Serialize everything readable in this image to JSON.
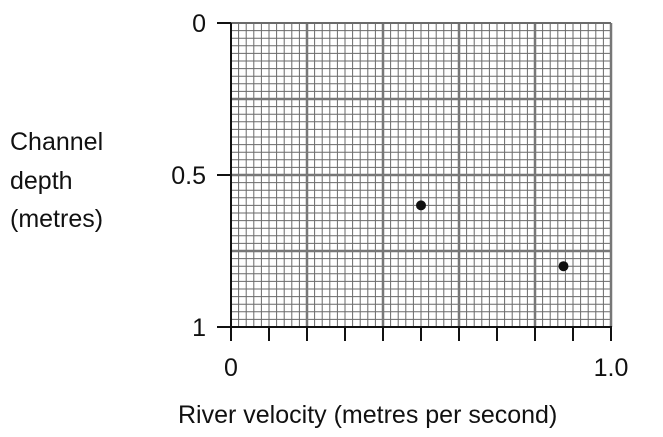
{
  "chart_data": {
    "type": "scatter",
    "title": "",
    "xlabel": "River velocity (metres per second)",
    "ylabel_lines": [
      "Channel",
      "depth",
      "(metres)"
    ],
    "xlim": [
      0,
      1.0
    ],
    "ylim": [
      0,
      1
    ],
    "y_inverted": true,
    "grid": true,
    "x_tick_labels": [
      "0",
      "1.0"
    ],
    "y_tick_labels": [
      "0",
      "0.5",
      "1"
    ],
    "points": [
      {
        "x": 0.5,
        "y": 0.6
      },
      {
        "x": 0.875,
        "y": 0.8
      }
    ]
  }
}
